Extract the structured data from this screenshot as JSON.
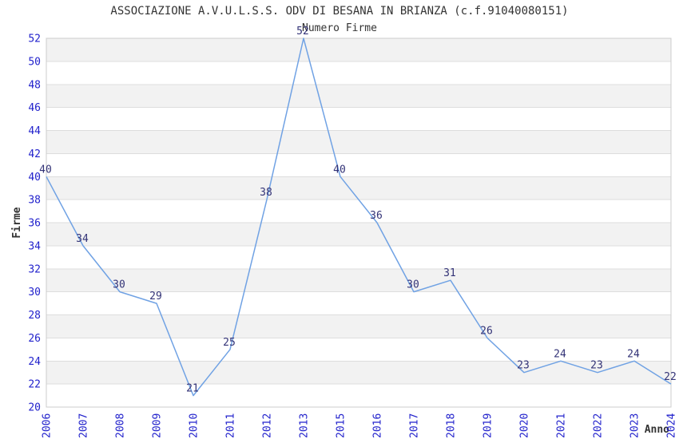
{
  "chart_data": {
    "type": "line",
    "title": "ASSOCIAZIONE A.V.U.L.S.S. ODV DI BESANA IN BRIANZA (c.f.91040080151)",
    "subtitle": "Numero Firme",
    "xlabel": "Anno",
    "ylabel": "Firme",
    "categories": [
      "2006",
      "2007",
      "2008",
      "2009",
      "2010",
      "2011",
      "2012",
      "2013",
      "2015",
      "2016",
      "2017",
      "2018",
      "2019",
      "2020",
      "2021",
      "2022",
      "2023",
      "2024"
    ],
    "values": [
      40,
      34,
      30,
      29,
      21,
      25,
      38,
      52,
      40,
      36,
      30,
      31,
      26,
      23,
      24,
      23,
      24,
      22
    ],
    "ylim": [
      20,
      52
    ],
    "ytick_step": 2,
    "grid": true,
    "legend": "none",
    "band_fill": true,
    "colors": {
      "line": "#70a2e4",
      "tick_label": "#2222cc",
      "point_label": "#333377",
      "band": "#f2f2f2",
      "gridline": "#dddddd",
      "border": "#cccccc",
      "text": "#333333"
    }
  }
}
